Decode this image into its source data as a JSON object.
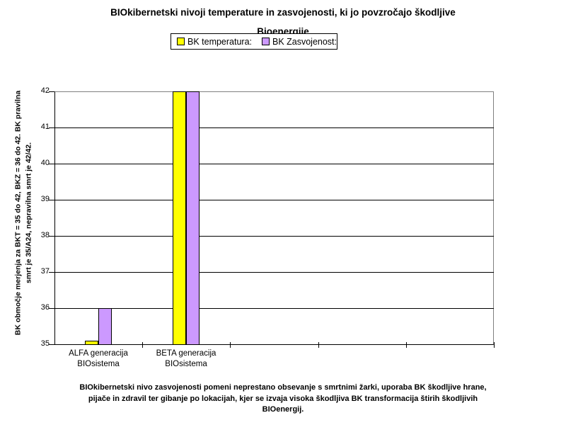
{
  "title": {
    "line1": "BIOkibernetski nivoji temperature in zasvojenosti, ki jo povzročajo škodljive",
    "line2": "Bioenergije"
  },
  "legend": {
    "items": [
      {
        "label": "BK temperatura:",
        "color": "#FFFF00"
      },
      {
        "label": "BK Zasvojenost:",
        "color": "#CC99FF"
      }
    ]
  },
  "y_axis": {
    "title_line1": "BK območje merjenja za BKT = 35 do 42, BKZ = 36 do 42. BK pravilna",
    "title_line2": "smrt je 35/A24, nepravilna smrt je 42/42.",
    "ticks": [
      35,
      36,
      37,
      38,
      39,
      40,
      41,
      42
    ]
  },
  "footer": {
    "lines": [
      "BIOkibernetski nivo zasvojenosti pomeni neprestano obsevanje s smrtnimi žarki, uporaba BK škodljive hrane,",
      "pijače in zdravil ter gibanje po lokacijah, kjer se izvaja visoka škodljiva BK transformacija štirih škodljivih",
      "BIOenergij."
    ]
  },
  "chart_data": {
    "type": "bar",
    "title": "BIOkibernetski nivoji temperature in zasvojenosti, ki jo povzročajo škodljive Bioenergije",
    "categories": [
      "ALFA generacija BIOsistema",
      "BETA generacija BIOsistema"
    ],
    "series": [
      {
        "name": "BK temperatura:",
        "color": "#FFFF00",
        "values": [
          35.1,
          42
        ]
      },
      {
        "name": "BK Zasvojenost:",
        "color": "#CC99FF",
        "values": [
          36,
          42
        ]
      }
    ],
    "ylabel": "BK območje merjenja za BKT = 35 do 42, BKZ = 36 do 42. BK pravilna smrt je 35/A24, nepravilna smrt je 42/42.",
    "xlabel": "",
    "ylim": [
      35,
      42
    ],
    "ytick_step": 1,
    "x_slots": 5,
    "grid": true,
    "gridline_color": "#000000",
    "plot_border_color": "#808080",
    "legend_position": "top",
    "footnote": "BIOkibernetski nivo zasvojenosti pomeni neprestano obsevanje s smrtnimi žarki, uporaba BK škodljive hrane, pijače in zdravil ter gibanje po lokacijah, kjer se izvaja visoka škodljiva BK transformacija štirih škodljivih BIOenergij."
  }
}
